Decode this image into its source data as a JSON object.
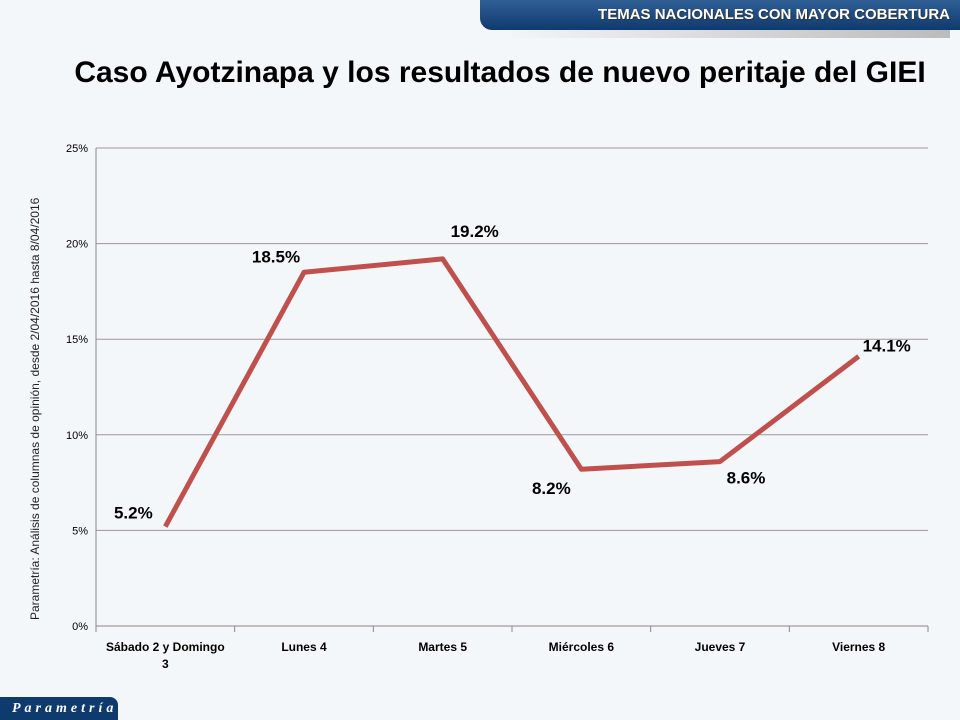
{
  "header": {
    "banner": "TEMAS NACIONALES CON MAYOR COBERTURA",
    "logo": "Parametría"
  },
  "chart_data": {
    "type": "line",
    "title": "Caso Ayotzinapa y los resultados de nuevo peritaje del GIEI",
    "source": "Parametría: Análisis de columnas de opinión, desde 2/04/2016 hasta 8/04/2016",
    "categories": [
      "Sábado 2 y Domingo 3",
      "Lunes 4",
      "Martes 5",
      "Miércoles 6",
      "Jueves 7",
      "Viernes 8"
    ],
    "category_lines": [
      [
        "Sábado 2 y Domingo",
        "3"
      ],
      [
        "Lunes 4"
      ],
      [
        "Martes 5"
      ],
      [
        "Miércoles 6"
      ],
      [
        "Jueves 7"
      ],
      [
        "Viernes 8"
      ]
    ],
    "values": [
      5.2,
      18.5,
      19.2,
      8.2,
      8.6,
      14.1
    ],
    "data_labels": [
      "5.2%",
      "18.5%",
      "19.2%",
      "8.2%",
      "8.6%",
      "14.1%"
    ],
    "yticks": [
      "0%",
      "5%",
      "10%",
      "15%",
      "20%",
      "25%"
    ],
    "ylim": [
      0,
      25
    ],
    "grid": true,
    "line_color": "#c0504d"
  }
}
